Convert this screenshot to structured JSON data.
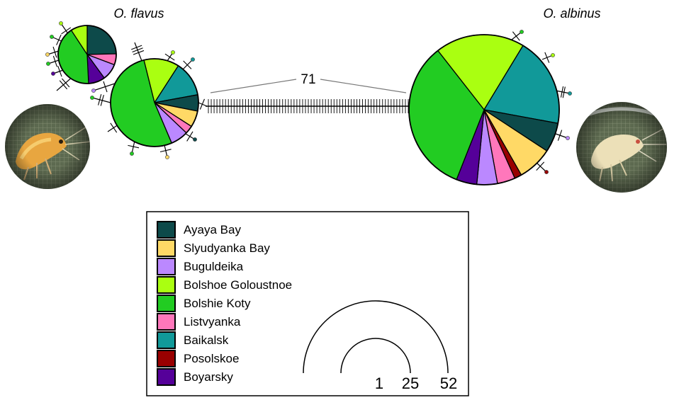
{
  "figure": {
    "species_left": "O. flavus",
    "species_right": "O. albinus",
    "mutation_steps_label": "71"
  },
  "legend": {
    "items": [
      {
        "label": "Ayaya Bay",
        "color": "#0d4a4a"
      },
      {
        "label": "Slyudyanka Bay",
        "color": "#ffd966"
      },
      {
        "label": "Buguldeika",
        "color": "#bb88ff"
      },
      {
        "label": "Bolshoe Goloustnoe",
        "color": "#aaff11"
      },
      {
        "label": "Bolshie Koty",
        "color": "#22cc22"
      },
      {
        "label": "Listvyanka",
        "color": "#ff77bb"
      },
      {
        "label": "Baikalsk",
        "color": "#119999"
      },
      {
        "label": "Posolskoe",
        "color": "#990000"
      },
      {
        "label": "Boyarsky",
        "color": "#550099"
      }
    ]
  },
  "size_scale": {
    "labels": [
      "1",
      "25",
      "52"
    ]
  },
  "chart_data": {
    "type": "haplotype-network",
    "nodes": [
      {
        "id": "flavus-small",
        "group": "O. flavus",
        "slices": [
          {
            "population": "Ayaya Bay",
            "value": 3.2
          },
          {
            "population": "Listvyanka",
            "value": 0.8
          },
          {
            "population": "Buguldeika",
            "value": 1.2
          },
          {
            "population": "Boyarsky",
            "value": 1.2
          },
          {
            "population": "Bolshie Koty",
            "value": 5.4
          },
          {
            "population": "Bolshoe Goloustnoe",
            "value": 1.2
          }
        ]
      },
      {
        "id": "flavus-main",
        "group": "O. flavus",
        "slices": [
          {
            "population": "Bolshoe Goloustnoe",
            "value": 2.6
          },
          {
            "population": "Baikalsk",
            "value": 2.6
          },
          {
            "population": "Ayaya Bay",
            "value": 1.2
          },
          {
            "population": "Slyudyanka Bay",
            "value": 1.2
          },
          {
            "population": "Listvyanka",
            "value": 0.6
          },
          {
            "population": "Buguldeika",
            "value": 1.3
          },
          {
            "population": "Bolshie Koty",
            "value": 10.5
          }
        ]
      },
      {
        "id": "albinus-main",
        "group": "O. albinus",
        "slices": [
          {
            "population": "Bolshoe Goloustnoe",
            "value": 10
          },
          {
            "population": "Baikalsk",
            "value": 10
          },
          {
            "population": "Ayaya Bay",
            "value": 3.3
          },
          {
            "population": "Slyudyanka Bay",
            "value": 3.9
          },
          {
            "population": "Posolskoe",
            "value": 0.8
          },
          {
            "population": "Listvyanka",
            "value": 2
          },
          {
            "population": "Buguldeika",
            "value": 2.3
          },
          {
            "population": "Boyarsky",
            "value": 2.3
          },
          {
            "population": "Bolshie Koty",
            "value": 17.4
          }
        ]
      }
    ],
    "links": [
      {
        "from": "flavus-main",
        "to": "albinus-main",
        "mutations": 71
      }
    ]
  }
}
